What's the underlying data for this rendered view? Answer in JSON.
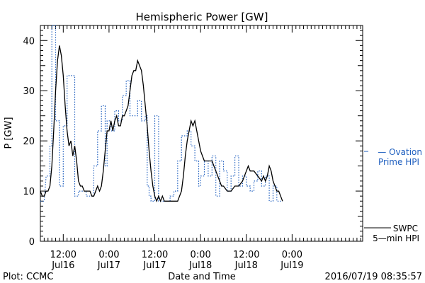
{
  "chart_data": {
    "type": "line",
    "title": "Hemispheric Power [GW]",
    "ylabel": "P [GW]",
    "xlabel": "Date and Time",
    "ylim": [
      0,
      43
    ],
    "yticks": [
      0,
      10,
      20,
      30,
      40
    ],
    "x_unit": "hours since 2016-07-15 06:00 (tick labels shown in x_ticks)",
    "xlim": [
      0,
      84.5
    ],
    "x_ticks": [
      {
        "x": 6,
        "label": "12:00",
        "label2": "Jul16"
      },
      {
        "x": 18,
        "label": "0:00",
        "label2": "Jul17"
      },
      {
        "x": 30,
        "label": "12:00",
        "label2": "Jul17"
      },
      {
        "x": 42,
        "label": "0:00",
        "label2": "Jul18"
      },
      {
        "x": 54,
        "label": "12:00",
        "label2": "Jul18"
      },
      {
        "x": 66,
        "label": "0:00",
        "label2": "Jul19"
      }
    ],
    "legend": [
      {
        "line1": "— Ovation",
        "line2": "Prime HPI",
        "color": "#1f5fbf",
        "style": "dotted"
      },
      {
        "line1": "SWPC",
        "line2": "5—min HPI",
        "color": "#000000",
        "style": "solid"
      }
    ],
    "series": [
      {
        "name": "SWPC 5-min HPI",
        "color": "#000000",
        "style": "solid",
        "points": [
          [
            0,
            10
          ],
          [
            0.5,
            9
          ],
          [
            1,
            9
          ],
          [
            1.5,
            10
          ],
          [
            2,
            10
          ],
          [
            2.5,
            11
          ],
          [
            3,
            15
          ],
          [
            3.5,
            22
          ],
          [
            4,
            30
          ],
          [
            4.5,
            36
          ],
          [
            5,
            39
          ],
          [
            5.5,
            37
          ],
          [
            6,
            33
          ],
          [
            6.5,
            27
          ],
          [
            7,
            22
          ],
          [
            7.5,
            19
          ],
          [
            8,
            20
          ],
          [
            8.5,
            17
          ],
          [
            9,
            19
          ],
          [
            9.5,
            16
          ],
          [
            10,
            12
          ],
          [
            10.5,
            11
          ],
          [
            11,
            11
          ],
          [
            11.5,
            10
          ],
          [
            12,
            10
          ],
          [
            12.5,
            10
          ],
          [
            13,
            10
          ],
          [
            13.5,
            9
          ],
          [
            14,
            9
          ],
          [
            14.5,
            10
          ],
          [
            15,
            11
          ],
          [
            15.5,
            10
          ],
          [
            16,
            11
          ],
          [
            16.5,
            14
          ],
          [
            17,
            18
          ],
          [
            17.5,
            22
          ],
          [
            18,
            22
          ],
          [
            18.5,
            24
          ],
          [
            19,
            22
          ],
          [
            19.5,
            24
          ],
          [
            20,
            25
          ],
          [
            20.5,
            23
          ],
          [
            21,
            23
          ],
          [
            21.5,
            25
          ],
          [
            22,
            25
          ],
          [
            22.5,
            26
          ],
          [
            23,
            27
          ],
          [
            23.5,
            30
          ],
          [
            24,
            33
          ],
          [
            24.5,
            34
          ],
          [
            25,
            34
          ],
          [
            25.5,
            36
          ],
          [
            26,
            35
          ],
          [
            26.5,
            34
          ],
          [
            27,
            31
          ],
          [
            27.5,
            27
          ],
          [
            28,
            23
          ],
          [
            28.5,
            18
          ],
          [
            29,
            14
          ],
          [
            29.5,
            11
          ],
          [
            30,
            9
          ],
          [
            30.5,
            8
          ],
          [
            31,
            9
          ],
          [
            31.5,
            8
          ],
          [
            32,
            9
          ],
          [
            32.5,
            8
          ],
          [
            33,
            8
          ],
          [
            34,
            8
          ],
          [
            35,
            8
          ],
          [
            36,
            8
          ],
          [
            36.5,
            9
          ],
          [
            37,
            10
          ],
          [
            37.5,
            13
          ],
          [
            38,
            17
          ],
          [
            38.5,
            20
          ],
          [
            39,
            22
          ],
          [
            39.5,
            24
          ],
          [
            40,
            23
          ],
          [
            40.5,
            24
          ],
          [
            41,
            22
          ],
          [
            41.5,
            20
          ],
          [
            42,
            18
          ],
          [
            42.5,
            17
          ],
          [
            43,
            16
          ],
          [
            44,
            16
          ],
          [
            45,
            16
          ],
          [
            45.5,
            15
          ],
          [
            46,
            14
          ],
          [
            46.5,
            13
          ],
          [
            47,
            12
          ],
          [
            47.5,
            11
          ],
          [
            48,
            11
          ],
          [
            49,
            10
          ],
          [
            50,
            10
          ],
          [
            51,
            11
          ],
          [
            52,
            11
          ],
          [
            53,
            12
          ],
          [
            54,
            14
          ],
          [
            54.5,
            15
          ],
          [
            55,
            14
          ],
          [
            56,
            14
          ],
          [
            57,
            13
          ],
          [
            58,
            12
          ],
          [
            58.5,
            13
          ],
          [
            59,
            12
          ],
          [
            59.5,
            13
          ],
          [
            60,
            15
          ],
          [
            60.5,
            14
          ],
          [
            61,
            12
          ],
          [
            61.5,
            11
          ],
          [
            62,
            10
          ],
          [
            62.5,
            10
          ],
          [
            63,
            9
          ],
          [
            63.5,
            8
          ]
        ]
      },
      {
        "name": "Ovation Prime HPI",
        "color": "#1f5fbf",
        "style": "dotted",
        "points": [
          [
            0,
            8
          ],
          [
            1,
            8
          ],
          [
            1.5,
            13
          ],
          [
            2.5,
            13
          ],
          [
            2.5,
            19
          ],
          [
            3,
            19
          ],
          [
            3,
            43
          ],
          [
            4,
            43
          ],
          [
            4,
            24
          ],
          [
            5,
            24
          ],
          [
            5,
            11
          ],
          [
            6,
            11
          ],
          [
            6,
            23
          ],
          [
            7,
            23
          ],
          [
            7,
            33
          ],
          [
            9,
            33
          ],
          [
            9,
            9
          ],
          [
            10,
            9
          ],
          [
            10,
            10
          ],
          [
            12,
            10
          ],
          [
            12,
            9
          ],
          [
            14,
            9
          ],
          [
            14,
            15
          ],
          [
            15,
            15
          ],
          [
            15,
            22
          ],
          [
            16,
            22
          ],
          [
            16,
            27
          ],
          [
            17,
            27
          ],
          [
            17,
            15
          ],
          [
            17.5,
            15
          ],
          [
            17.5,
            24
          ],
          [
            18.5,
            24
          ],
          [
            18.5,
            22
          ],
          [
            19.5,
            22
          ],
          [
            19.5,
            26
          ],
          [
            20.5,
            26
          ],
          [
            20.5,
            24
          ],
          [
            21.5,
            24
          ],
          [
            21.5,
            29
          ],
          [
            22.5,
            29
          ],
          [
            22.5,
            32
          ],
          [
            23.5,
            32
          ],
          [
            23.5,
            25
          ],
          [
            25.5,
            25
          ],
          [
            25.5,
            28
          ],
          [
            26.5,
            28
          ],
          [
            26.5,
            24
          ],
          [
            27.5,
            24
          ],
          [
            27.5,
            25
          ],
          [
            28,
            25
          ],
          [
            28,
            11
          ],
          [
            28.5,
            11
          ],
          [
            28.5,
            9
          ],
          [
            29,
            9
          ],
          [
            29,
            8
          ],
          [
            30,
            8
          ],
          [
            30,
            25
          ],
          [
            31,
            25
          ],
          [
            31,
            8
          ],
          [
            34,
            8
          ],
          [
            34,
            9
          ],
          [
            35,
            9
          ],
          [
            35,
            10
          ],
          [
            36,
            10
          ],
          [
            36,
            16
          ],
          [
            37,
            16
          ],
          [
            37,
            21
          ],
          [
            38.5,
            21
          ],
          [
            38.5,
            22
          ],
          [
            39.5,
            22
          ],
          [
            39.5,
            19
          ],
          [
            40.5,
            19
          ],
          [
            40.5,
            16
          ],
          [
            41.5,
            16
          ],
          [
            41.5,
            11
          ],
          [
            42,
            11
          ],
          [
            42,
            13
          ],
          [
            43,
            13
          ],
          [
            43,
            16
          ],
          [
            44,
            16
          ],
          [
            44,
            13
          ],
          [
            45,
            13
          ],
          [
            45,
            17
          ],
          [
            46,
            17
          ],
          [
            46,
            9
          ],
          [
            47,
            9
          ],
          [
            47,
            16
          ],
          [
            48,
            16
          ],
          [
            48,
            14
          ],
          [
            49,
            14
          ],
          [
            49,
            10
          ],
          [
            50,
            10
          ],
          [
            50,
            13
          ],
          [
            51,
            13
          ],
          [
            51,
            17
          ],
          [
            52,
            17
          ],
          [
            52,
            11
          ],
          [
            53,
            11
          ],
          [
            53,
            13
          ],
          [
            54,
            13
          ],
          [
            54,
            11
          ],
          [
            55,
            11
          ],
          [
            55,
            10
          ],
          [
            56,
            10
          ],
          [
            56,
            12
          ],
          [
            57,
            12
          ],
          [
            57,
            14
          ],
          [
            58,
            14
          ],
          [
            58,
            11
          ],
          [
            59,
            11
          ],
          [
            59,
            13
          ],
          [
            60,
            13
          ],
          [
            60,
            8
          ],
          [
            61,
            8
          ],
          [
            61,
            11
          ],
          [
            62,
            11
          ],
          [
            62,
            8
          ],
          [
            63.5,
            8
          ]
        ]
      }
    ]
  },
  "footer": {
    "plot_credit": "Plot: CCMC",
    "timestamp": "2016/07/19 08:35:57"
  }
}
